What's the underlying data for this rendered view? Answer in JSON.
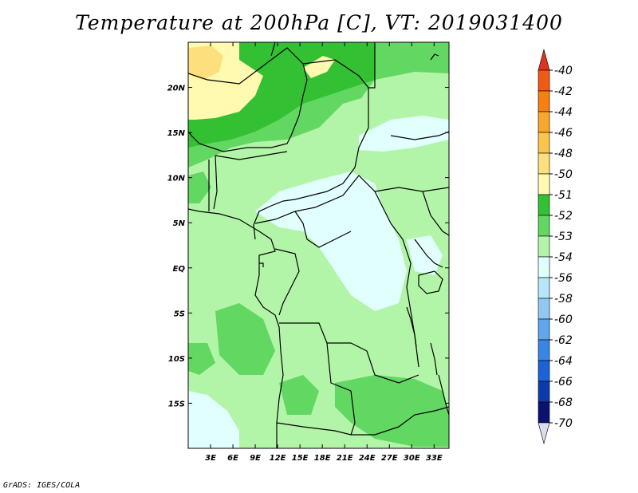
{
  "title": "Temperature at 200hPa [C], VT: 2019031400",
  "footer": "GrADS: IGES/COLA",
  "map": {
    "lon_range": [
      0,
      35
    ],
    "lat_range": [
      -20,
      25
    ],
    "lat_ticks": [
      {
        "value": 20,
        "label": "20N"
      },
      {
        "value": 15,
        "label": "15N"
      },
      {
        "value": 10,
        "label": "10N"
      },
      {
        "value": 5,
        "label": "5N"
      },
      {
        "value": 0,
        "label": "EQ"
      },
      {
        "value": -5,
        "label": "5S"
      },
      {
        "value": -10,
        "label": "10S"
      },
      {
        "value": -15,
        "label": "15S"
      }
    ],
    "lon_ticks": [
      {
        "value": 3,
        "label": "3E"
      },
      {
        "value": 6,
        "label": "6E"
      },
      {
        "value": 9,
        "label": "9E"
      },
      {
        "value": 12,
        "label": "12E"
      },
      {
        "value": 15,
        "label": "15E"
      },
      {
        "value": 18,
        "label": "18E"
      },
      {
        "value": 21,
        "label": "21E"
      },
      {
        "value": 24,
        "label": "24E"
      },
      {
        "value": 27,
        "label": "27E"
      },
      {
        "value": 30,
        "label": "30E"
      },
      {
        "value": 33,
        "label": "33E"
      }
    ]
  },
  "colorbar": {
    "labels": [
      "-40",
      "-42",
      "-44",
      "-46",
      "-48",
      "-50",
      "-51",
      "-52",
      "-53",
      "-54",
      "-56",
      "-58",
      "-60",
      "-62",
      "-64",
      "-66",
      "-68",
      "-70"
    ],
    "colors": [
      "#e0331c",
      "#f05a13",
      "#f57f10",
      "#f9a72c",
      "#fbc44a",
      "#fde07d",
      "#fffab0",
      "#33c033",
      "#62d762",
      "#b3f5a8",
      "#e0fffd",
      "#b7e6f9",
      "#8fc9f3",
      "#5fa6ec",
      "#3786e4",
      "#1b62d6",
      "#0b3aab",
      "#0a1270",
      "#dcdcf0"
    ]
  },
  "colors": {
    "yellow_light": "#fffab0",
    "yellow": "#fde07d",
    "green_dark": "#33c033",
    "green_mid": "#62d762",
    "green_light": "#b3f5a8",
    "cyan_light": "#e0fffd"
  }
}
